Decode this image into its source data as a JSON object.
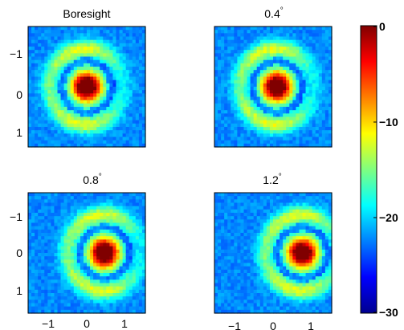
{
  "chart_data": {
    "type": "heatmap",
    "colormap": "jet",
    "panels": [
      {
        "title": "Boresight",
        "degree_mark": "",
        "peak": [
          0,
          0
        ],
        "xticks": [],
        "yticks": [
          "−1",
          "0",
          "1"
        ]
      },
      {
        "title": "0.4",
        "degree_mark": "°",
        "peak": [
          0.1,
          0
        ],
        "xticks": [],
        "yticks": []
      },
      {
        "title": "0.8",
        "degree_mark": "°",
        "peak": [
          0.45,
          0
        ],
        "xticks": [
          "−1",
          "0",
          "1"
        ],
        "yticks": [
          "−1",
          "0",
          "1"
        ]
      },
      {
        "title": "1.2",
        "degree_mark": "°",
        "peak": [
          0.75,
          0
        ],
        "xticks": [
          "−1",
          "0",
          "1"
        ],
        "yticks": []
      }
    ],
    "axis_range": [
      -1.5,
      1.5
    ],
    "colorbar": {
      "ticks": [
        "0",
        "−10",
        "−20",
        "−30"
      ],
      "range": [
        -30,
        0
      ]
    },
    "grid": false,
    "legend": "none"
  }
}
